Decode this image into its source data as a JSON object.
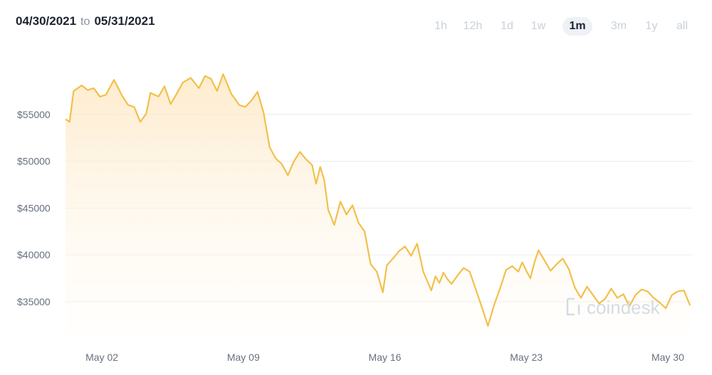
{
  "header": {
    "start_date": "04/30/2021",
    "to_label": "to",
    "end_date": "05/31/2021"
  },
  "tabs": [
    {
      "label": "1h",
      "active": false
    },
    {
      "label": "12h",
      "active": false
    },
    {
      "label": "1d",
      "active": false
    },
    {
      "label": "1w",
      "active": false
    },
    {
      "label": "1m",
      "active": true
    },
    {
      "label": "3m",
      "active": false
    },
    {
      "label": "1y",
      "active": false
    },
    {
      "label": "all",
      "active": false
    }
  ],
  "watermark": "coindesk",
  "colors": {
    "line": "#f2c04a",
    "fill_top": "#fde8c4",
    "grid": "#ececec",
    "text": "#66707f"
  },
  "chart_data": {
    "type": "area",
    "title": "",
    "xlabel": "",
    "ylabel": "",
    "y_ticks": [
      "$35000",
      "$40000",
      "$45000",
      "$50000",
      "$55000"
    ],
    "y_tick_values": [
      35000,
      40000,
      45000,
      50000,
      55000
    ],
    "x_ticks": [
      "May 02",
      "May 09",
      "May 16",
      "May 23",
      "May 30"
    ],
    "x_tick_days": [
      2,
      9,
      16,
      23,
      30
    ],
    "xlim_days": [
      0.2,
      31.2
    ],
    "ylim": [
      31500,
      60000
    ],
    "grid": true,
    "series": [
      {
        "x_days": [
          0.2,
          0.4,
          0.6,
          1.0,
          1.3,
          1.6,
          1.9,
          2.2,
          2.6,
          3.0,
          3.3,
          3.6,
          3.9,
          4.2,
          4.4,
          4.6,
          4.8,
          5.1,
          5.4,
          5.7,
          6.0,
          6.4,
          6.8,
          7.1,
          7.4,
          7.7,
          8.0,
          8.4,
          8.8,
          9.1,
          9.4,
          9.7,
          10.0,
          10.3,
          10.6,
          10.9,
          11.2,
          11.5,
          11.8,
          12.1,
          12.4,
          12.6,
          12.8,
          13.0,
          13.2,
          13.5,
          13.8,
          14.1,
          14.4,
          14.7,
          15.0,
          15.3,
          15.6,
          15.9,
          16.1,
          16.4,
          16.7,
          17.0,
          17.3,
          17.6,
          17.9,
          18.1,
          18.3,
          18.5,
          18.7,
          18.9,
          19.1,
          19.3,
          19.6,
          19.9,
          20.2,
          20.5,
          20.8,
          21.1,
          21.4,
          21.7,
          22.0,
          22.3,
          22.6,
          22.8,
          23.0,
          23.2,
          23.4,
          23.6,
          23.9,
          24.2,
          24.5,
          24.8,
          25.1,
          25.4,
          25.7,
          26.0,
          26.3,
          26.6,
          26.9,
          27.2,
          27.5,
          27.8,
          28.1,
          28.4,
          28.7,
          29.0,
          29.3,
          29.6,
          29.9,
          30.2,
          30.5,
          30.8,
          31.1
        ],
        "y_values": [
          54500,
          54200,
          57500,
          58100,
          57600,
          57800,
          56900,
          57100,
          58700,
          57000,
          56000,
          55800,
          54200,
          55100,
          57300,
          57100,
          56900,
          58000,
          56100,
          57200,
          58400,
          58900,
          57800,
          59100,
          58800,
          57500,
          59300,
          57200,
          56000,
          55800,
          56500,
          57400,
          55200,
          51500,
          50300,
          49700,
          48500,
          50000,
          51000,
          50200,
          49600,
          47600,
          49400,
          48000,
          44800,
          43200,
          45700,
          44300,
          45300,
          43400,
          42500,
          39000,
          38200,
          36000,
          38900,
          39600,
          40400,
          40900,
          39900,
          41200,
          38200,
          37200,
          36200,
          37700,
          37000,
          38100,
          37400,
          36900,
          37800,
          38600,
          38200,
          36300,
          34400,
          32400,
          34600,
          36400,
          38400,
          38800,
          38200,
          39200,
          38300,
          37500,
          39200,
          40500,
          39400,
          38300,
          39000,
          39600,
          38500,
          36500,
          35400,
          36600,
          35700,
          34800,
          35300,
          36400,
          35400,
          35800,
          34500,
          35700,
          36300,
          36100,
          35400,
          34900,
          34300,
          35700,
          36100,
          36200,
          34600
        ]
      }
    ]
  }
}
